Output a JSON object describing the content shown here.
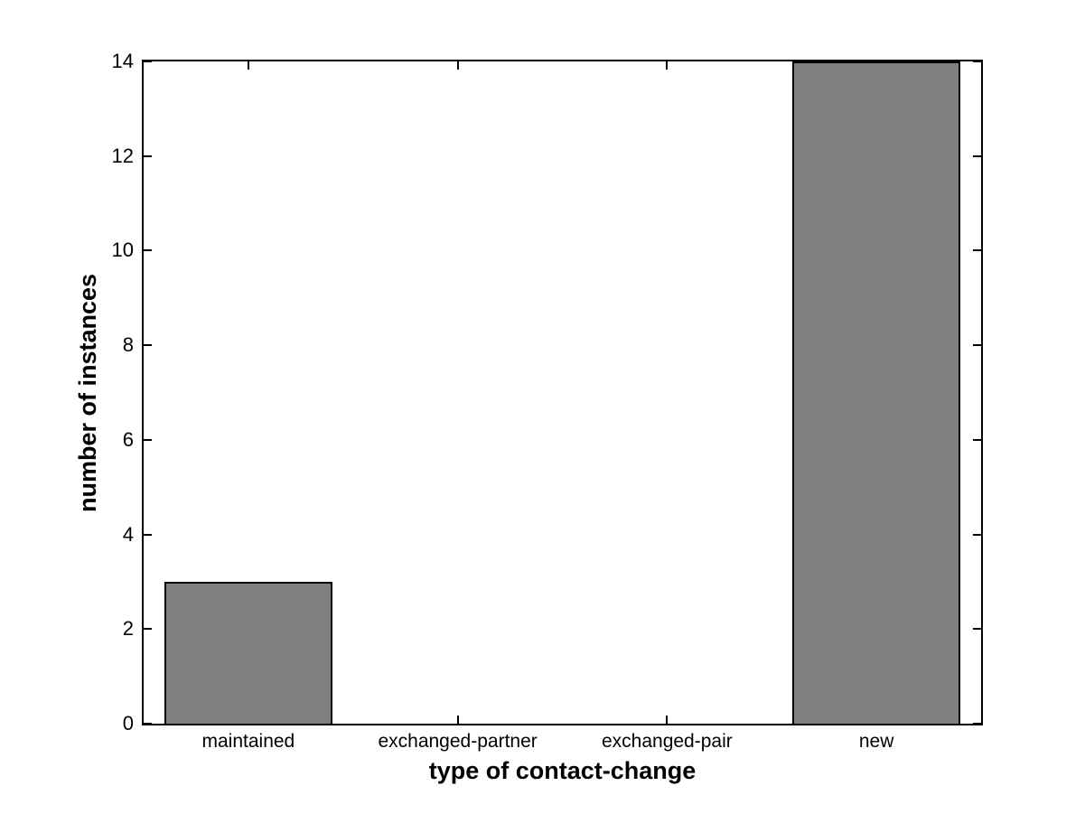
{
  "figure": {
    "background": "#ffffff",
    "axis_color": "#000000",
    "text_color": "#000000"
  },
  "chart_data": {
    "type": "bar",
    "title": "",
    "categories": [
      "maintained",
      "exchanged-partner",
      "exchanged-pair",
      "new"
    ],
    "values": [
      3,
      0,
      0,
      14
    ],
    "xlabel": "type of contact-change",
    "ylabel": "number of instances",
    "ylim": [
      0,
      14
    ],
    "yticks": [
      0,
      2,
      4,
      6,
      8,
      10,
      12,
      14
    ],
    "bar_color": "#808080",
    "bar_edge_color": "#000000",
    "bar_width_fraction": 0.8,
    "grid": false,
    "legend_position": "none"
  }
}
